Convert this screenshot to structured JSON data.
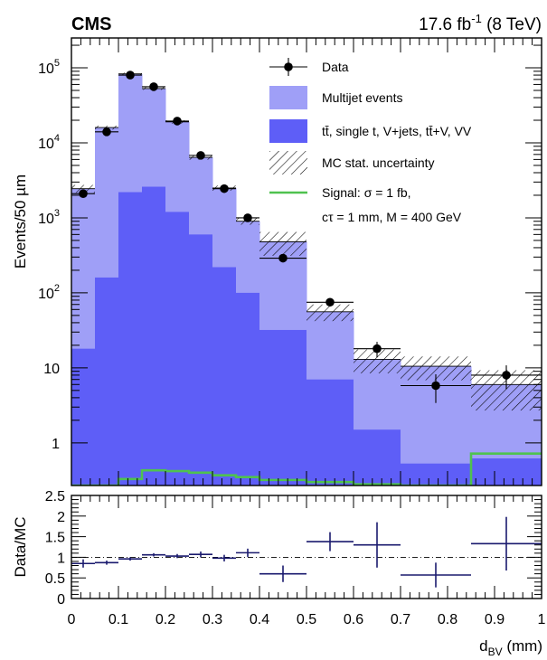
{
  "header": {
    "experiment": "CMS",
    "lumi_value": "17.6 fb",
    "lumi_exp": "-1",
    "lumi_energy": " (8 TeV)"
  },
  "chart_data": [
    {
      "type": "bar",
      "panel": "main",
      "ylabel": "Events/50 µm",
      "yscale": "log",
      "ylim": [
        0.27,
        250000
      ],
      "xlim": [
        0,
        1
      ],
      "y_ticks": [
        {
          "v": 100000,
          "base": "10",
          "exp": "5"
        },
        {
          "v": 10000,
          "base": "10",
          "exp": "4"
        },
        {
          "v": 1000,
          "base": "10",
          "exp": "3"
        },
        {
          "v": 100,
          "base": "10",
          "exp": "2"
        },
        {
          "v": 10,
          "base": "10",
          "exp": ""
        },
        {
          "v": 1,
          "base": "1",
          "exp": ""
        }
      ],
      "bin_edges": [
        0,
        0.05,
        0.1,
        0.15,
        0.2,
        0.25,
        0.3,
        0.35,
        0.4,
        0.5,
        0.6,
        0.7,
        0.85,
        1.0
      ],
      "series": [
        {
          "name": "Data",
          "kind": "points",
          "values": [
            2100,
            14000,
            80000,
            56000,
            19500,
            6800,
            2450,
            1000,
            290,
            75,
            18,
            5.8,
            8.0
          ],
          "errors": [
            46,
            118,
            283,
            237,
            140,
            82,
            50,
            32,
            17,
            8.7,
            4.2,
            2.4,
            2.8
          ]
        },
        {
          "name": "Multijet events",
          "kind": "stack-total",
          "color": "#9f9ff7",
          "values": [
            2450,
            16000,
            83000,
            53000,
            19000,
            6400,
            2500,
            900,
            480,
            56,
            13,
            10.5,
            6.0
          ]
        },
        {
          "name": "tt̄, single t, V+jets, tt̄+V, VV",
          "kind": "stack",
          "color": "#5e5ef7",
          "values": [
            18,
            160,
            2200,
            2600,
            1200,
            600,
            220,
            100,
            32,
            7,
            1.5,
            0.53,
            0.62
          ]
        },
        {
          "name": "MC stat. uncertainty",
          "kind": "band",
          "rel_error": [
            0.12,
            0.06,
            0.04,
            0.04,
            0.05,
            0.07,
            0.08,
            0.1,
            0.35,
            0.25,
            0.35,
            0.35,
            0.55
          ]
        },
        {
          "name": "Signal: σ = 1 fb, cτ = 1 mm, M = 400 GeV",
          "kind": "line",
          "color": "#4fc24f",
          "values": [
            0.27,
            0.27,
            0.33,
            0.43,
            0.42,
            0.4,
            0.37,
            0.35,
            0.32,
            0.3,
            0.28,
            0.27,
            0.72
          ]
        }
      ],
      "legend": {
        "position": "top-right",
        "entries": [
          "Data",
          "Multijet events",
          "tt̄, single t, V+jets, tt̄+V, VV",
          "MC stat. uncertainty",
          "Signal: σ = 1 fb,",
          "cτ = 1 mm, M = 400 GeV"
        ]
      }
    },
    {
      "type": "scatter",
      "panel": "ratio",
      "xlabel_main": "d",
      "xlabel_sub": "BV",
      "xlabel_unit": " (mm)",
      "ylabel": "Data/MC",
      "xlim": [
        0,
        1
      ],
      "ylim": [
        0,
        2.5
      ],
      "x_ticks": [
        "0",
        "0.1",
        "0.2",
        "0.3",
        "0.4",
        "0.5",
        "0.6",
        "0.7",
        "0.8",
        "0.9",
        "1"
      ],
      "y_ticks": [
        "0",
        "0.5",
        "1",
        "1.5",
        "2",
        "2.5"
      ],
      "reference_line": 1,
      "points": [
        {
          "x0": 0,
          "x1": 0.05,
          "y": 0.85,
          "err": 0.1
        },
        {
          "x0": 0.05,
          "x1": 0.1,
          "y": 0.87,
          "err": 0.05
        },
        {
          "x0": 0.1,
          "x1": 0.15,
          "y": 0.96,
          "err": 0.04
        },
        {
          "x0": 0.15,
          "x1": 0.2,
          "y": 1.06,
          "err": 0.04
        },
        {
          "x0": 0.2,
          "x1": 0.25,
          "y": 1.03,
          "err": 0.05
        },
        {
          "x0": 0.25,
          "x1": 0.3,
          "y": 1.07,
          "err": 0.07
        },
        {
          "x0": 0.3,
          "x1": 0.35,
          "y": 0.98,
          "err": 0.08
        },
        {
          "x0": 0.35,
          "x1": 0.4,
          "y": 1.11,
          "err": 0.1
        },
        {
          "x0": 0.4,
          "x1": 0.5,
          "y": 0.6,
          "err": 0.2
        },
        {
          "x0": 0.5,
          "x1": 0.6,
          "y": 1.38,
          "err": 0.23
        },
        {
          "x0": 0.6,
          "x1": 0.7,
          "y": 1.3,
          "err": 0.55
        },
        {
          "x0": 0.7,
          "x1": 0.85,
          "y": 0.57,
          "err": 0.3
        },
        {
          "x0": 0.85,
          "x1": 1.0,
          "y": 1.33,
          "err": 0.65
        }
      ]
    }
  ]
}
